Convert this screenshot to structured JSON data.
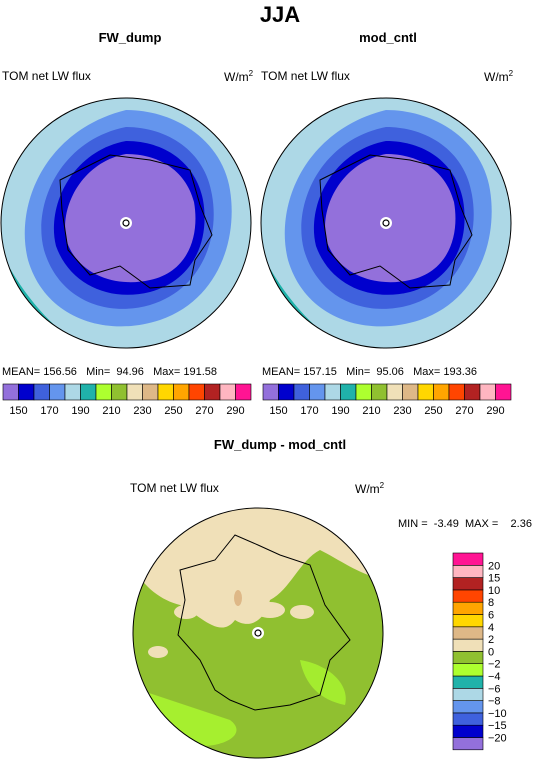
{
  "title": "JJA",
  "panels": [
    {
      "title": "FW_dump",
      "variable": "TOM net LW flux",
      "units": "W/m",
      "units_sup": "2",
      "mean": "156.56",
      "min": "94.96",
      "max": "191.58"
    },
    {
      "title": "mod_cntl",
      "variable": "TOM net LW flux",
      "units": "W/m",
      "units_sup": "2",
      "mean": "157.15",
      "min": "95.06",
      "max": "193.36"
    }
  ],
  "diff_panel": {
    "title": "FW_dump - mod_cntl",
    "variable": "TOM net LW flux",
    "units": "W/m",
    "units_sup": "2",
    "min": "-3.49",
    "max": "2.36"
  },
  "colorbar_top": {
    "colors": [
      "#9370db",
      "#0000cd",
      "#3f61dd",
      "#6495ed",
      "#add8e6",
      "#20b2aa",
      "#adff2f",
      "#90c030",
      "#f0e0b8",
      "#deb887",
      "#ffd700",
      "#ffa500",
      "#ff4500",
      "#b22222",
      "#ffb6c1",
      "#ff1493"
    ],
    "labels": [
      "150",
      "170",
      "190",
      "210",
      "230",
      "250",
      "270",
      "290"
    ]
  },
  "colorbar_diff": {
    "colors": [
      "#9370db",
      "#0000cd",
      "#3f61dd",
      "#6495ed",
      "#add8e6",
      "#20b2aa",
      "#adff2f",
      "#90c030",
      "#f0e0b8",
      "#deb887",
      "#ffd700",
      "#ffa500",
      "#ff4500",
      "#b22222",
      "#ffb6c1",
      "#ff1493"
    ],
    "labels": [
      "−20",
      "−15",
      "−10",
      "−8",
      "−6",
      "−4",
      "−2",
      "0",
      "2",
      "4",
      "6",
      "8",
      "10",
      "15",
      "20"
    ]
  },
  "text": {
    "mean_label": "MEAN=",
    "min_label": "Min=",
    "max_label": "Max=",
    "diff_min_label": "MIN =",
    "diff_max_label": "MAX ="
  }
}
